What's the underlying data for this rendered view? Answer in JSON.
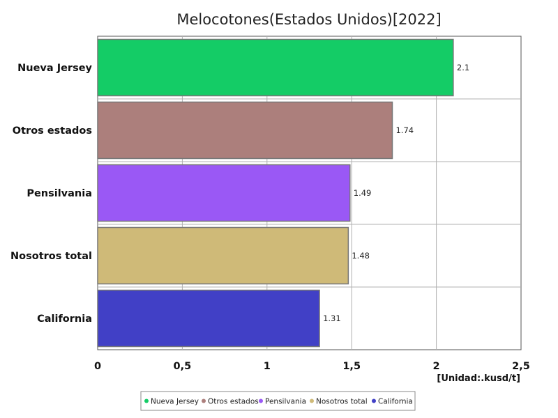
{
  "chart_data": {
    "type": "bar",
    "orientation": "horizontal",
    "title": "Melocotones(Estados Unidos)[2022]",
    "categories": [
      "Nueva Jersey",
      "Otros estados",
      "Pensilvania",
      "Nosotros total",
      "California"
    ],
    "values": [
      2.1,
      1.74,
      1.49,
      1.48,
      1.31
    ],
    "value_labels": [
      "2.1",
      "1.74",
      "1.49",
      "1.48",
      "1.31"
    ],
    "colors": [
      "#14cc66",
      "#ac7f7c",
      "#9a58f5",
      "#cfba78",
      "#4140c6"
    ],
    "xlim": [
      0,
      2.5
    ],
    "xticks": [
      0,
      0.5,
      1,
      1.5,
      2,
      2.5
    ],
    "xtick_labels": [
      "0",
      "0,5",
      "1",
      "1,5",
      "2",
      "2,5"
    ],
    "unit_label": "[Unidad:.kusd/t]",
    "grid": true,
    "legend_position": "bottom",
    "legend": [
      "Nueva Jersey",
      "Otros estados",
      "Pensilvania",
      "Nosotros total",
      "California"
    ]
  }
}
